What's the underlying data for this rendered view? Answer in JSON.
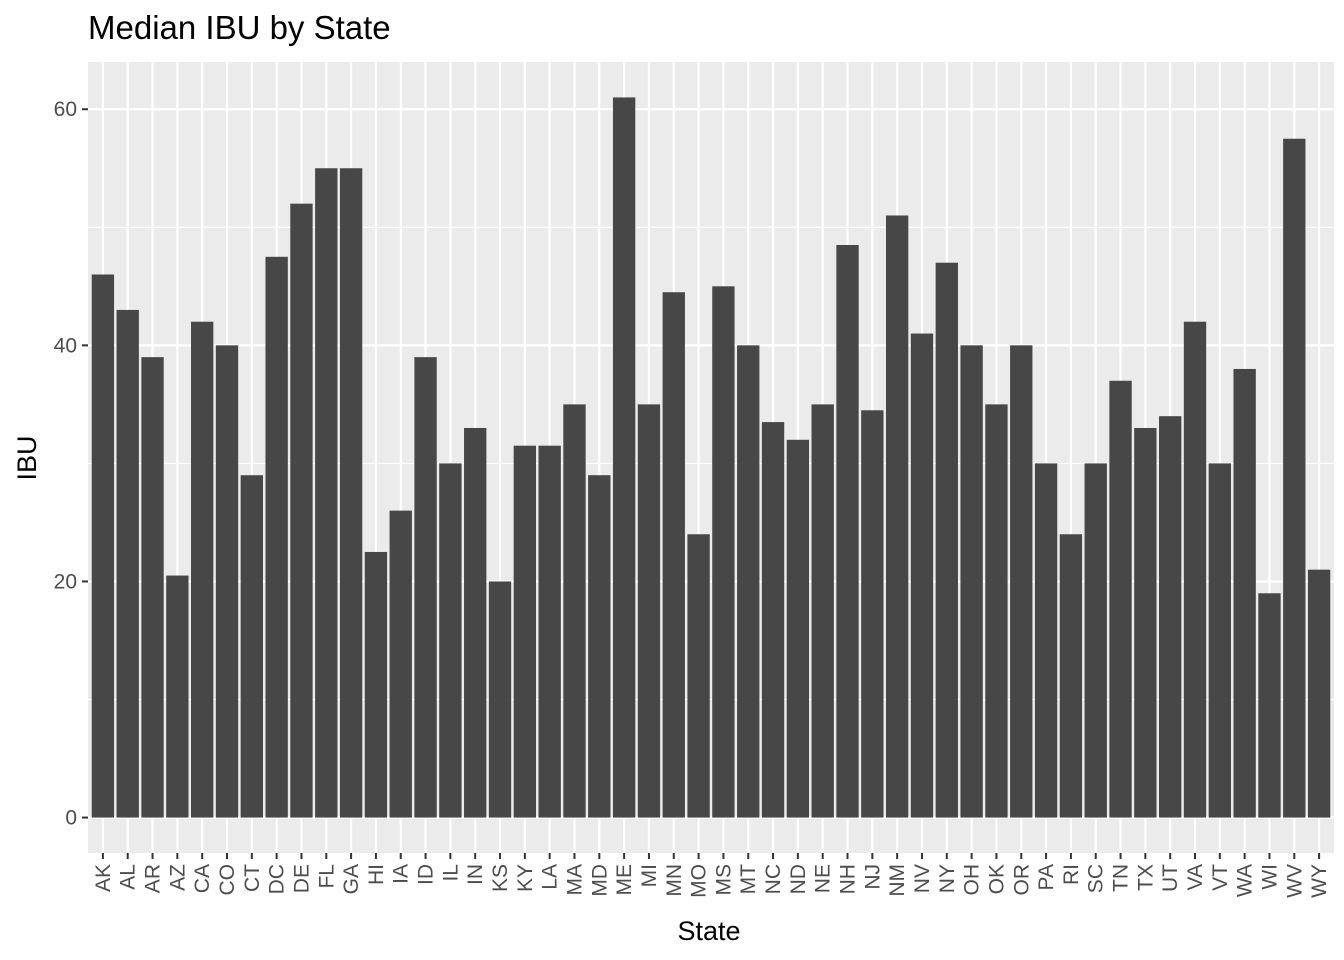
{
  "chart_data": {
    "type": "bar",
    "title": "Median IBU by State",
    "xlabel": "State",
    "ylabel": "IBU",
    "ylim": [
      -3,
      64
    ],
    "yticks": [
      0,
      20,
      40,
      60
    ],
    "grid": true,
    "categories": [
      "AK",
      "AL",
      "AR",
      "AZ",
      "CA",
      "CO",
      "CT",
      "DC",
      "DE",
      "FL",
      "GA",
      "HI",
      "IA",
      "ID",
      "IL",
      "IN",
      "KS",
      "KY",
      "LA",
      "MA",
      "MD",
      "ME",
      "MI",
      "MN",
      "MO",
      "MS",
      "MT",
      "NC",
      "ND",
      "NE",
      "NH",
      "NJ",
      "NM",
      "NV",
      "NY",
      "OH",
      "OK",
      "OR",
      "PA",
      "RI",
      "SC",
      "TN",
      "TX",
      "UT",
      "VA",
      "VT",
      "WA",
      "WI",
      "WV",
      "WY"
    ],
    "values": [
      46,
      43,
      39,
      20.5,
      42,
      40,
      29,
      47.5,
      52,
      55,
      55,
      22.5,
      26,
      39,
      30,
      33,
      20,
      31.5,
      31.5,
      35,
      29,
      61,
      35,
      44.5,
      24,
      45,
      40,
      33.5,
      32,
      35,
      48.5,
      34.5,
      51,
      41,
      47,
      40,
      35,
      40,
      30,
      24,
      30,
      37,
      33,
      34,
      42,
      30,
      38,
      19,
      57.5,
      21
    ],
    "colors": {
      "bar": "#474747",
      "panel": "#ebebeb",
      "grid_major": "#ffffff",
      "tick_text": "#4d4d4d",
      "tick_mark": "#333333"
    }
  }
}
